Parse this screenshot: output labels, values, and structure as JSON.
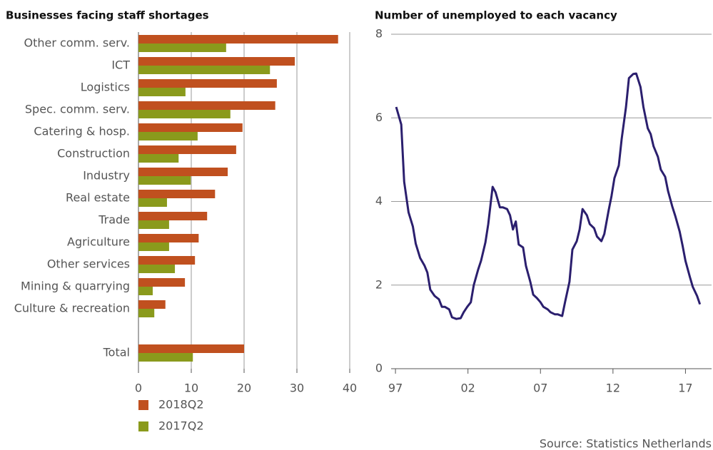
{
  "chart_data": [
    {
      "type": "hbar",
      "title": "Businesses facing staff shortages",
      "categories": [
        "Other comm. serv.",
        "ICT",
        "Logistics",
        "Spec. comm. serv.",
        "Catering & hosp.",
        "Construction",
        "Industry",
        "Real estate",
        "Trade",
        "Agriculture",
        "Other services",
        "Mining & quarrying",
        "Culture & recreation",
        null,
        "Total"
      ],
      "series": [
        {
          "name": "2018Q2",
          "color": "#c0501f",
          "values": [
            37.8,
            29.6,
            26.2,
            25.9,
            19.7,
            18.5,
            16.9,
            14.5,
            13,
            11.4,
            10.7,
            8.8,
            5.1,
            null,
            20
          ]
        },
        {
          "name": "2017Q2",
          "color": "#8a9a1c",
          "values": [
            16.6,
            24.9,
            8.9,
            17.4,
            11.2,
            7.6,
            9.9,
            5.4,
            5.8,
            5.8,
            6.9,
            2.7,
            3,
            null,
            10.3
          ]
        }
      ],
      "xlim": [
        0,
        40
      ],
      "xticks": [
        0,
        10,
        20,
        30,
        40
      ],
      "grid": true,
      "legend": "bottom"
    },
    {
      "type": "line",
      "title": "Number of unemployed to each vacancy",
      "color": "#2b1f6e",
      "x": [
        1997.05,
        1997.4,
        1997.6,
        1997.9,
        1998.2,
        1998.4,
        1998.7,
        1999.0,
        1999.2,
        1999.4,
        1999.7,
        2000.0,
        2000.2,
        2000.4,
        2000.7,
        2000.9,
        2001.2,
        2001.5,
        2001.7,
        2001.95,
        2002.2,
        2002.4,
        2002.7,
        2002.9,
        2003.2,
        2003.4,
        2003.7,
        2003.9,
        2004.2,
        2004.4,
        2004.7,
        2004.9,
        2005.1,
        2005.3,
        2005.5,
        2005.8,
        2006.0,
        2006.3,
        2006.5,
        2006.75,
        2007.0,
        2007.2,
        2007.5,
        2007.7,
        2008.0,
        2008.2,
        2008.5,
        2008.7,
        2009.0,
        2009.2,
        2009.5,
        2009.7,
        2009.9,
        2010.2,
        2010.4,
        2010.7,
        2010.9,
        2011.2,
        2011.4,
        2011.7,
        2011.9,
        2012.1,
        2012.4,
        2012.6,
        2012.9,
        2013.1,
        2013.4,
        2013.6,
        2013.9,
        2014.1,
        2014.4,
        2014.6,
        2014.8,
        2015.1,
        2015.3,
        2015.6,
        2015.8,
        2016.1,
        2016.3,
        2016.6,
        2016.8,
        2017.0,
        2017.3,
        2017.5,
        2017.8,
        2018.0
      ],
      "values": [
        6.26,
        5.84,
        4.47,
        3.74,
        3.4,
        2.99,
        2.65,
        2.47,
        2.3,
        1.89,
        1.74,
        1.66,
        1.48,
        1.48,
        1.42,
        1.23,
        1.19,
        1.21,
        1.35,
        1.48,
        1.59,
        2.0,
        2.37,
        2.58,
        3.02,
        3.46,
        4.35,
        4.22,
        3.86,
        3.86,
        3.82,
        3.67,
        3.33,
        3.52,
        2.97,
        2.9,
        2.46,
        2.08,
        1.77,
        1.69,
        1.59,
        1.48,
        1.42,
        1.35,
        1.3,
        1.3,
        1.26,
        1.6,
        2.08,
        2.85,
        3.05,
        3.33,
        3.82,
        3.67,
        3.46,
        3.36,
        3.16,
        3.05,
        3.22,
        3.79,
        4.13,
        4.56,
        4.86,
        5.49,
        6.26,
        6.95,
        7.05,
        7.06,
        6.74,
        6.26,
        5.75,
        5.61,
        5.32,
        5.07,
        4.76,
        4.59,
        4.25,
        3.87,
        3.65,
        3.28,
        2.94,
        2.58,
        2.2,
        1.96,
        1.74,
        1.54
      ],
      "xlim": [
        1996.7,
        2018.8
      ],
      "xticks": [
        {
          "value": 1997,
          "label": "97"
        },
        {
          "value": 2002,
          "label": "02"
        },
        {
          "value": 2007,
          "label": "07"
        },
        {
          "value": 2012,
          "label": "12"
        },
        {
          "value": 2017,
          "label": "17"
        }
      ],
      "ylim": [
        0,
        8
      ],
      "yticks": [
        0,
        2,
        4,
        6,
        8
      ],
      "grid": true,
      "source": "Source: Statistics Netherlands"
    }
  ]
}
